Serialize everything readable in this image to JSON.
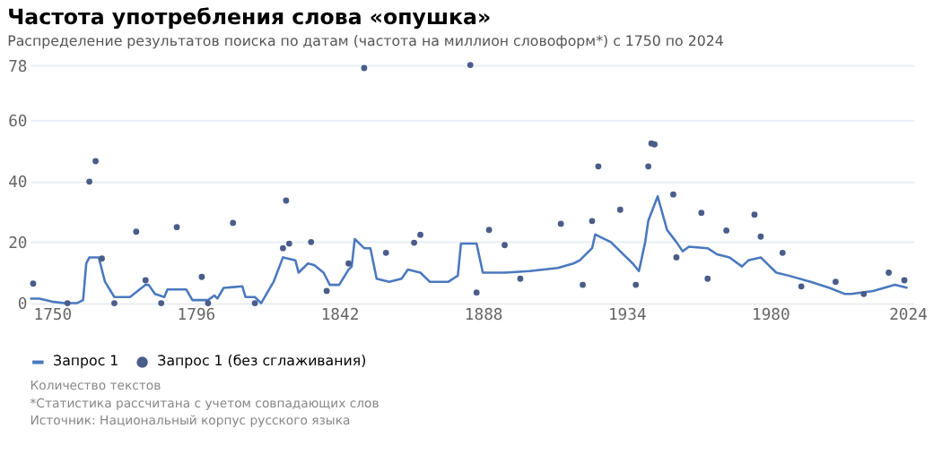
{
  "chart_data": {
    "type": "line",
    "title": "Частота употребления слова «опушка»",
    "subtitle": "Распределение результатов поиска по датам (частота на миллион словоформ*) с 1750 по 2024",
    "xlim": [
      1743,
      2026
    ],
    "xticks": [
      1750,
      1796,
      1842,
      1888,
      1934,
      1980,
      2024
    ],
    "ylim": [
      0,
      78
    ],
    "yticks": [
      0,
      20,
      40,
      60,
      78
    ],
    "grid": "y",
    "legend": "bottom",
    "series": [
      {
        "name": "Запрос 1",
        "type": "line",
        "color": "#4a78be",
        "x": [
          1743,
          1746,
          1750,
          1754,
          1758,
          1760,
          1761,
          1762,
          1765,
          1767,
          1770,
          1775,
          1780,
          1781,
          1783,
          1786,
          1787,
          1793,
          1795,
          1800,
          1802,
          1803,
          1805,
          1811,
          1812,
          1815,
          1817,
          1821,
          1824,
          1828,
          1829,
          1832,
          1834,
          1837,
          1839,
          1842,
          1845,
          1846,
          1847,
          1850,
          1852,
          1854,
          1858,
          1862,
          1864,
          1868,
          1871,
          1877,
          1880,
          1881,
          1886,
          1888,
          1895,
          1903,
          1912,
          1917,
          1919,
          1923,
          1924,
          1929,
          1932,
          1936,
          1938,
          1940,
          1941,
          1944,
          1947,
          1950,
          1952,
          1954,
          1960,
          1963,
          1967,
          1971,
          1973,
          1977,
          1978,
          1982,
          1986,
          1993,
          1999,
          2004,
          2006,
          2013,
          2020,
          2024
        ],
        "values": [
          1.5,
          1.5,
          0.5,
          0,
          0,
          1,
          13,
          15,
          15,
          7,
          2,
          2,
          6,
          6,
          3,
          2,
          4.5,
          4.5,
          1,
          1,
          2.5,
          1.5,
          5,
          5.5,
          2,
          2,
          0,
          7,
          15,
          14,
          10,
          13,
          12.5,
          10,
          6,
          6,
          11,
          12,
          21,
          18,
          18,
          8,
          7,
          8,
          11,
          10,
          7,
          7,
          9,
          19.5,
          19.5,
          10,
          10,
          10.5,
          11.5,
          13,
          14,
          18,
          22.5,
          20,
          17,
          13,
          10.5,
          20,
          27,
          35,
          24,
          20,
          17,
          18.5,
          18,
          16,
          15,
          12,
          14,
          15,
          14,
          10,
          9,
          7,
          5,
          3,
          3,
          4,
          6,
          5
        ]
      },
      {
        "name": "Запрос 1 (без сглаживания)",
        "type": "scatter",
        "color": "#4a5d8a",
        "marker": "circle",
        "x": [
          1744,
          1755,
          1762,
          1764,
          1766,
          1770,
          1777,
          1780,
          1785,
          1790,
          1798,
          1800,
          1808,
          1815,
          1824,
          1825,
          1826,
          1833,
          1838,
          1845,
          1850,
          1857,
          1866,
          1868,
          1884,
          1886,
          1890,
          1895,
          1900,
          1913,
          1920,
          1923,
          1925,
          1932,
          1937,
          1941,
          1942,
          1943,
          1949,
          1950,
          1958,
          1960,
          1966,
          1975,
          1977,
          1984,
          1990,
          2001,
          2010,
          2018,
          2023
        ],
        "values": [
          6.4,
          0,
          39.8,
          46.5,
          14.6,
          0,
          23.4,
          7.5,
          0,
          24.9,
          8.6,
          0,
          26.3,
          0,
          18,
          33.6,
          19.5,
          20,
          4,
          13,
          77,
          16.5,
          19.8,
          22.4,
          78,
          3.5,
          24,
          19,
          8,
          26,
          6,
          26.9,
          44.8,
          30.6,
          6,
          44.8,
          52.3,
          52,
          35.6,
          15,
          29.6,
          8,
          23.8,
          29,
          21.8,
          16.5,
          5.5,
          7,
          3,
          10,
          7.5
        ]
      }
    ],
    "annotations": [
      "Количество текстов",
      "*Статистика рассчитана с учетом совпадающих слов",
      "Источник: Национальный корпус русского языка"
    ]
  }
}
